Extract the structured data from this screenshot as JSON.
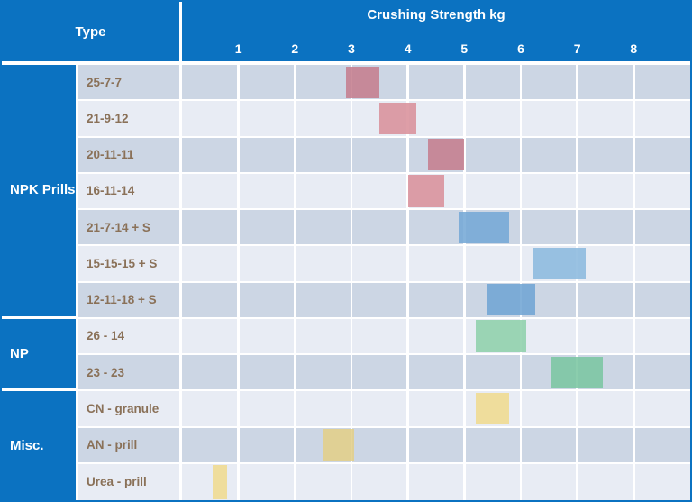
{
  "header": {
    "type_label": "Type",
    "title": "Crushing Strength kg"
  },
  "axis": {
    "min": 0,
    "max": 9,
    "ticks": [
      1,
      2,
      3,
      4,
      5,
      6,
      7,
      8
    ]
  },
  "groups": [
    {
      "label": "NPK Prills",
      "rowspan": 7
    },
    {
      "label": "NP",
      "rowspan": 2
    },
    {
      "label": "Misc.",
      "rowspan": 3
    }
  ],
  "rows": [
    {
      "group": "NPK Prills",
      "label": "25-7-7",
      "min": 2.9,
      "max": 3.5,
      "color": "#c47d8d",
      "shade": "dark"
    },
    {
      "group": "NPK Prills",
      "label": "21-9-12",
      "min": 3.5,
      "max": 4.15,
      "color": "#d9909a",
      "shade": "light"
    },
    {
      "group": "NPK Prills",
      "label": "20-11-11",
      "min": 4.35,
      "max": 5.0,
      "color": "#c47d8d",
      "shade": "dark"
    },
    {
      "group": "NPK Prills",
      "label": "16-11-14",
      "min": 4.0,
      "max": 4.65,
      "color": "#d9909a",
      "shade": "light"
    },
    {
      "group": "NPK Prills",
      "label": "21-7-14 + S",
      "min": 4.9,
      "max": 5.8,
      "color": "#74a8d6",
      "shade": "dark"
    },
    {
      "group": "NPK Prills",
      "label": "15-15-15 + S",
      "min": 6.2,
      "max": 7.15,
      "color": "#8bb9de",
      "shade": "light"
    },
    {
      "group": "NPK Prills",
      "label": "12-11-18 + S",
      "min": 5.4,
      "max": 6.25,
      "color": "#6fa4d3",
      "shade": "dark"
    },
    {
      "group": "NP",
      "label": "26 - 14",
      "min": 5.2,
      "max": 6.1,
      "color": "#8ed0aa",
      "shade": "light"
    },
    {
      "group": "NP",
      "label": "23 - 23",
      "min": 6.55,
      "max": 7.45,
      "color": "#7ac6a1",
      "shade": "dark"
    },
    {
      "group": "Misc.",
      "label": "CN - granule",
      "min": 5.2,
      "max": 5.8,
      "color": "#f0da8e",
      "shade": "light"
    },
    {
      "group": "Misc.",
      "label": "AN - prill",
      "min": 2.5,
      "max": 3.05,
      "color": "#e2cf87",
      "shade": "dark"
    },
    {
      "group": "Misc.",
      "label": "Urea - prill",
      "min": 0.55,
      "max": 0.8,
      "color": "#f0da8e",
      "shade": "light"
    }
  ],
  "colors": {
    "header_blue": "#0b72c1",
    "row_dark": "#ccd6e4",
    "row_light": "#e8ecf4",
    "label_text": "#8a7158",
    "gridline": "#ffffff"
  },
  "chart_data": {
    "type": "bar",
    "subtype": "horizontal-floating-range",
    "title": "Crushing Strength kg",
    "xlabel": "Crushing Strength kg",
    "ylabel": "Type",
    "xlim": [
      0,
      9
    ],
    "xticks": [
      1,
      2,
      3,
      4,
      5,
      6,
      7,
      8
    ],
    "grid": true,
    "categories": [
      "25-7-7",
      "21-9-12",
      "20-11-11",
      "16-11-14",
      "21-7-14 + S",
      "15-15-15 + S",
      "12-11-18 + S",
      "26 - 14",
      "23 - 23",
      "CN - granule",
      "AN - prill",
      "Urea - prill"
    ],
    "category_groups": [
      "NPK Prills",
      "NPK Prills",
      "NPK Prills",
      "NPK Prills",
      "NPK Prills",
      "NPK Prills",
      "NPK Prills",
      "NP",
      "NP",
      "Misc.",
      "Misc.",
      "Misc."
    ],
    "ranges_kg": [
      [
        2.9,
        3.5
      ],
      [
        3.5,
        4.15
      ],
      [
        4.35,
        5.0
      ],
      [
        4.0,
        4.65
      ],
      [
        4.9,
        5.8
      ],
      [
        6.2,
        7.15
      ],
      [
        5.4,
        6.25
      ],
      [
        5.2,
        6.1
      ],
      [
        6.55,
        7.45
      ],
      [
        5.2,
        5.8
      ],
      [
        2.5,
        3.05
      ],
      [
        0.55,
        0.8
      ]
    ]
  }
}
